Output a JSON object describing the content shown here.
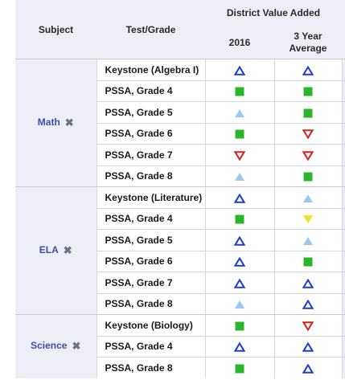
{
  "header": {
    "subject": "Subject",
    "test_grade": "Test/Grade",
    "district_value_added": "District Value Added",
    "col_2016": "2016",
    "col_3yr": "3 Year Average"
  },
  "legend_symbols": {
    "up-outline": {
      "icon": "blue-outline-triangle-up-icon",
      "color": "#1f3ccc"
    },
    "up-filled": {
      "icon": "light-blue-filled-triangle-up-icon",
      "color": "#9cc9f2"
    },
    "green": {
      "icon": "green-square-icon",
      "color": "#2bb52b"
    },
    "yellow-down": {
      "icon": "yellow-triangle-down-icon",
      "color": "#f2e12a"
    },
    "red-down": {
      "icon": "red-outline-triangle-down-icon",
      "color": "#d42020"
    }
  },
  "groups": [
    {
      "subject": "Math",
      "rows": [
        {
          "test": "Keystone (Algebra I)",
          "v2016": "up-outline",
          "v3": "up-outline"
        },
        {
          "test": "PSSA, Grade 4",
          "v2016": "green",
          "v3": "green"
        },
        {
          "test": "PSSA, Grade 5",
          "v2016": "up-filled",
          "v3": "green"
        },
        {
          "test": "PSSA, Grade 6",
          "v2016": "green",
          "v3": "red-down"
        },
        {
          "test": "PSSA, Grade 7",
          "v2016": "red-down",
          "v3": "red-down"
        },
        {
          "test": "PSSA, Grade 8",
          "v2016": "up-filled",
          "v3": "green"
        }
      ]
    },
    {
      "subject": "ELA",
      "rows": [
        {
          "test": "Keystone (Literature)",
          "v2016": "up-outline",
          "v3": "up-filled"
        },
        {
          "test": "PSSA, Grade 4",
          "v2016": "green",
          "v3": "yellow-down"
        },
        {
          "test": "PSSA, Grade 5",
          "v2016": "up-outline",
          "v3": "up-filled"
        },
        {
          "test": "PSSA, Grade 6",
          "v2016": "up-outline",
          "v3": "green"
        },
        {
          "test": "PSSA, Grade 7",
          "v2016": "up-outline",
          "v3": "up-outline"
        },
        {
          "test": "PSSA, Grade 8",
          "v2016": "up-filled",
          "v3": "up-outline"
        }
      ]
    },
    {
      "subject": "Science",
      "rows": [
        {
          "test": "Keystone (Biology)",
          "v2016": "green",
          "v3": "red-down"
        },
        {
          "test": "PSSA, Grade 4",
          "v2016": "up-outline",
          "v3": "up-outline"
        },
        {
          "test": "PSSA, Grade 8",
          "v2016": "green",
          "v3": "up-outline"
        }
      ]
    }
  ]
}
